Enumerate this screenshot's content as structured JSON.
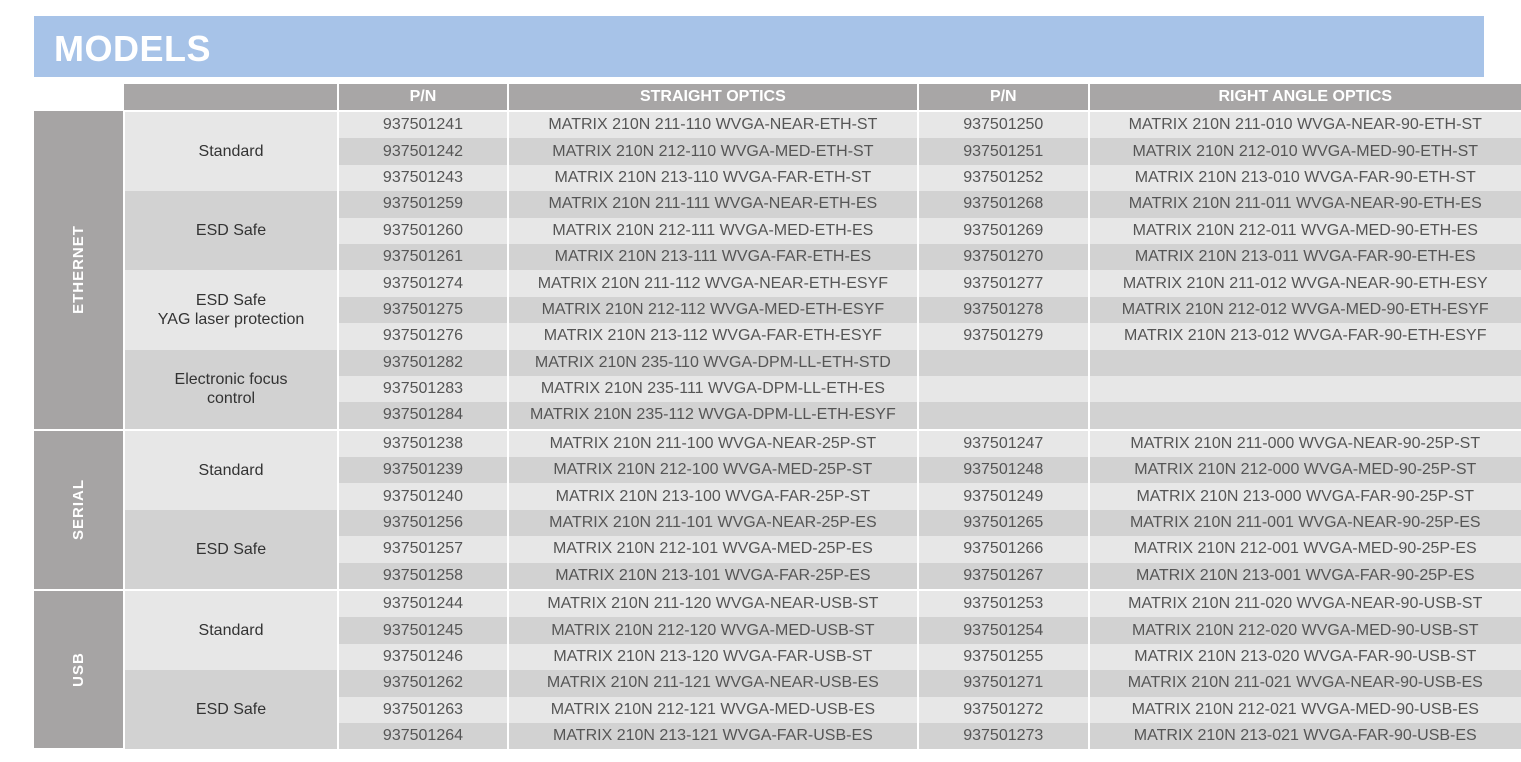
{
  "title": "MODELS",
  "headers": [
    "",
    "P/N",
    "STRAIGHT OPTICS",
    "P/N",
    "RIGHT ANGLE OPTICS"
  ],
  "sections": [
    {
      "label": "ETHERNET",
      "groups": [
        {
          "label": "Standard",
          "rows": [
            [
              "937501241",
              "MATRIX 210N 211-110 WVGA-NEAR-ETH-ST",
              "937501250",
              "MATRIX 210N 211-010 WVGA-NEAR-90-ETH-ST"
            ],
            [
              "937501242",
              "MATRIX 210N 212-110 WVGA-MED-ETH-ST",
              "937501251",
              "MATRIX 210N 212-010 WVGA-MED-90-ETH-ST"
            ],
            [
              "937501243",
              "MATRIX 210N 213-110 WVGA-FAR-ETH-ST",
              "937501252",
              "MATRIX 210N 213-010 WVGA-FAR-90-ETH-ST"
            ]
          ]
        },
        {
          "label": "ESD Safe",
          "rows": [
            [
              "937501259",
              "MATRIX 210N 211-111 WVGA-NEAR-ETH-ES",
              "937501268",
              "MATRIX 210N 211-011 WVGA-NEAR-90-ETH-ES"
            ],
            [
              "937501260",
              "MATRIX 210N 212-111 WVGA-MED-ETH-ES",
              "937501269",
              "MATRIX 210N 212-011 WVGA-MED-90-ETH-ES"
            ],
            [
              "937501261",
              "MATRIX 210N 213-111 WVGA-FAR-ETH-ES",
              "937501270",
              "MATRIX 210N 213-011 WVGA-FAR-90-ETH-ES"
            ]
          ]
        },
        {
          "label": "ESD Safe\nYAG laser protection",
          "rows": [
            [
              "937501274",
              "MATRIX 210N 211-112 WVGA-NEAR-ETH-ESYF",
              "937501277",
              "MATRIX 210N 211-012 WVGA-NEAR-90-ETH-ESY"
            ],
            [
              "937501275",
              "MATRIX 210N 212-112 WVGA-MED-ETH-ESYF",
              "937501278",
              "MATRIX 210N 212-012 WVGA-MED-90-ETH-ESYF"
            ],
            [
              "937501276",
              "MATRIX 210N 213-112 WVGA-FAR-ETH-ESYF",
              "937501279",
              "MATRIX 210N 213-012 WVGA-FAR-90-ETH-ESYF"
            ]
          ]
        },
        {
          "label": "Electronic focus\ncontrol",
          "rows": [
            [
              "937501282",
              "MATRIX 210N 235-110 WVGA-DPM-LL-ETH-STD",
              "",
              ""
            ],
            [
              "937501283",
              "MATRIX 210N 235-111 WVGA-DPM-LL-ETH-ES",
              "",
              ""
            ],
            [
              "937501284",
              "MATRIX 210N 235-112 WVGA-DPM-LL-ETH-ESYF",
              "",
              ""
            ]
          ]
        }
      ]
    },
    {
      "label": "SERIAL",
      "groups": [
        {
          "label": "Standard",
          "rows": [
            [
              "937501238",
              "MATRIX 210N 211-100 WVGA-NEAR-25P-ST",
              "937501247",
              "MATRIX 210N 211-000 WVGA-NEAR-90-25P-ST"
            ],
            [
              "937501239",
              "MATRIX 210N 212-100 WVGA-MED-25P-ST",
              "937501248",
              "MATRIX 210N 212-000 WVGA-MED-90-25P-ST"
            ],
            [
              "937501240",
              "MATRIX 210N 213-100 WVGA-FAR-25P-ST",
              "937501249",
              "MATRIX 210N 213-000 WVGA-FAR-90-25P-ST"
            ]
          ]
        },
        {
          "label": "ESD Safe",
          "rows": [
            [
              "937501256",
              "MATRIX 210N 211-101 WVGA-NEAR-25P-ES",
              "937501265",
              "MATRIX 210N 211-001 WVGA-NEAR-90-25P-ES"
            ],
            [
              "937501257",
              "MATRIX 210N 212-101 WVGA-MED-25P-ES",
              "937501266",
              "MATRIX 210N 212-001 WVGA-MED-90-25P-ES"
            ],
            [
              "937501258",
              "MATRIX 210N 213-101 WVGA-FAR-25P-ES",
              "937501267",
              "MATRIX 210N 213-001 WVGA-FAR-90-25P-ES"
            ]
          ]
        }
      ]
    },
    {
      "label": "USB",
      "groups": [
        {
          "label": "Standard",
          "rows": [
            [
              "937501244",
              "MATRIX 210N 211-120 WVGA-NEAR-USB-ST",
              "937501253",
              "MATRIX 210N 211-020 WVGA-NEAR-90-USB-ST"
            ],
            [
              "937501245",
              "MATRIX 210N 212-120 WVGA-MED-USB-ST",
              "937501254",
              "MATRIX 210N 212-020 WVGA-MED-90-USB-ST"
            ],
            [
              "937501246",
              "MATRIX 210N 213-120 WVGA-FAR-USB-ST",
              "937501255",
              "MATRIX 210N 213-020 WVGA-FAR-90-USB-ST"
            ]
          ]
        },
        {
          "label": "ESD Safe",
          "rows": [
            [
              "937501262",
              "MATRIX 210N 211-121 WVGA-NEAR-USB-ES",
              "937501271",
              "MATRIX 210N 211-021 WVGA-NEAR-90-USB-ES"
            ],
            [
              "937501263",
              "MATRIX 210N 212-121 WVGA-MED-USB-ES",
              "937501272",
              "MATRIX 210N 212-021 WVGA-MED-90-USB-ES"
            ],
            [
              "937501264",
              "MATRIX 210N 213-121 WVGA-FAR-USB-ES",
              "937501273",
              "MATRIX 210N 213-021 WVGA-FAR-90-USB-ES"
            ]
          ]
        }
      ]
    }
  ],
  "colors": {
    "title_bar": "#a7c3e8",
    "header": "#a8a6a6",
    "row_light": "#e7e7e7",
    "row_dark": "#d2d2d2"
  }
}
